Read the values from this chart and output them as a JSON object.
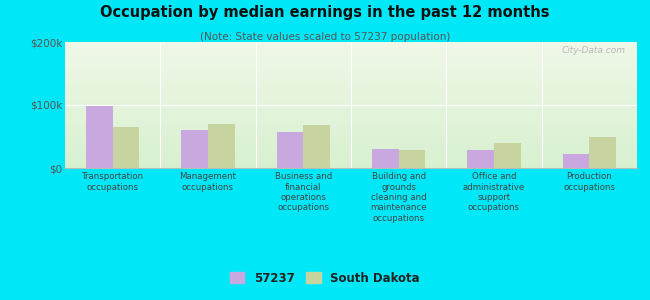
{
  "title": "Occupation by median earnings in the past 12 months",
  "subtitle": "(Note: State values scaled to 57237 population)",
  "categories": [
    "Transportation\noccupations",
    "Management\noccupations",
    "Business and\nfinancial\noperations\noccupations",
    "Building and\ngrounds\ncleaning and\nmaintenance\noccupations",
    "Office and\nadministrative\nsupport\noccupations",
    "Production\noccupations"
  ],
  "values_57237": [
    98000,
    60000,
    57000,
    30000,
    28000,
    23000
  ],
  "values_sd": [
    65000,
    70000,
    68000,
    28000,
    40000,
    50000
  ],
  "color_57237": "#c9a8e0",
  "color_sd": "#c8d4a0",
  "ylim": [
    0,
    200000
  ],
  "ytick_labels": [
    "$0",
    "$100k",
    "$200k"
  ],
  "bg_top": "#f0f8e8",
  "bg_bottom": "#d8f0d0",
  "outer_bg": "#00e8f8",
  "legend_label_57237": "57237",
  "legend_label_sd": "South Dakota",
  "watermark": "City-Data.com",
  "bar_width": 0.28
}
